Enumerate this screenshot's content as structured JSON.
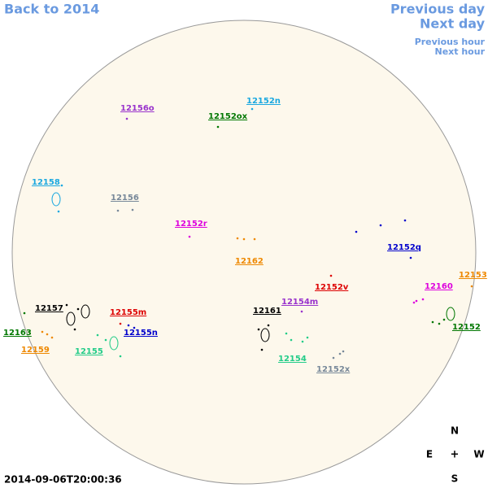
{
  "nav": {
    "back": "Back to 2014",
    "previous_day": "Previous day",
    "next_day": "Next day",
    "previous_hour": "Previous hour",
    "next_hour": "Next hour"
  },
  "regions": [
    {
      "label": "12156o",
      "color": "#9933cc"
    },
    {
      "label": "12152n",
      "color": "#1aa8e0"
    },
    {
      "label": "12152ox",
      "color": "#007700"
    },
    {
      "label": "12158",
      "color": "#1aa8e0"
    },
    {
      "label": "12156",
      "color": "#778899"
    },
    {
      "label": "12152r",
      "color": "#dd00dd"
    },
    {
      "label": "12162",
      "color": "#ee8800"
    },
    {
      "label": "12152q",
      "color": "#0000cc"
    },
    {
      "label": "12153",
      "color": "#ee8800"
    },
    {
      "label": "12152v",
      "color": "#dd0000"
    },
    {
      "label": "12160",
      "color": "#dd00dd"
    },
    {
      "label": "12154m",
      "color": "#9933cc"
    },
    {
      "label": "12161",
      "color": "#000000"
    },
    {
      "label": "12157",
      "color": "#000000"
    },
    {
      "label": "12155m",
      "color": "#dd0000"
    },
    {
      "label": "12155n",
      "color": "#0000cc"
    },
    {
      "label": "12163",
      "color": "#007700"
    },
    {
      "label": "12159",
      "color": "#ee8800"
    },
    {
      "label": "12155",
      "color": "#22cc88"
    },
    {
      "label": "12154",
      "color": "#22cc88"
    },
    {
      "label": "12152",
      "color": "#007700"
    },
    {
      "label": "12152x",
      "color": "#778899"
    }
  ],
  "timestamp": "2014-09-06T20:00:36",
  "compass": {
    "n": "N",
    "e": "E",
    "center": "+",
    "w": "W",
    "s": "S"
  }
}
